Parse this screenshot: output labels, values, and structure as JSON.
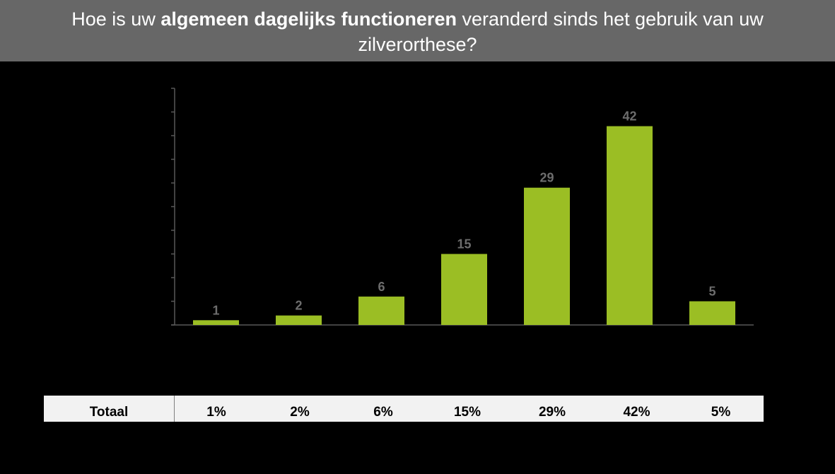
{
  "title": {
    "prefix": "Hoe is uw ",
    "bold": "algemeen dagelijks functioneren",
    "suffix": " veranderd sinds het gebruik van uw zilverorthese?"
  },
  "colors": {
    "bar": "#9bbe24",
    "data_label": "#6d6d6d",
    "axis": "#595959",
    "title_bg": "#676767"
  },
  "chart_data": {
    "type": "bar",
    "categories": [
      "",
      "",
      "",
      "",
      "",
      "",
      ""
    ],
    "values": [
      1,
      2,
      6,
      15,
      29,
      42,
      5
    ],
    "data_labels": [
      "1",
      "2",
      "6",
      "15",
      "29",
      "42",
      "5"
    ],
    "ylim": [
      0,
      50
    ],
    "y_ticks": [
      0,
      5,
      10,
      15,
      20,
      25,
      30,
      35,
      40,
      45,
      50
    ],
    "tick_labels_shown": false,
    "grid": false,
    "legend": "none",
    "title": "",
    "xlabel": "",
    "ylabel": ""
  },
  "summary_table": {
    "row_label": "Totaal",
    "cells": [
      "1%",
      "2%",
      "6%",
      "15%",
      "29%",
      "42%",
      "5%"
    ]
  }
}
